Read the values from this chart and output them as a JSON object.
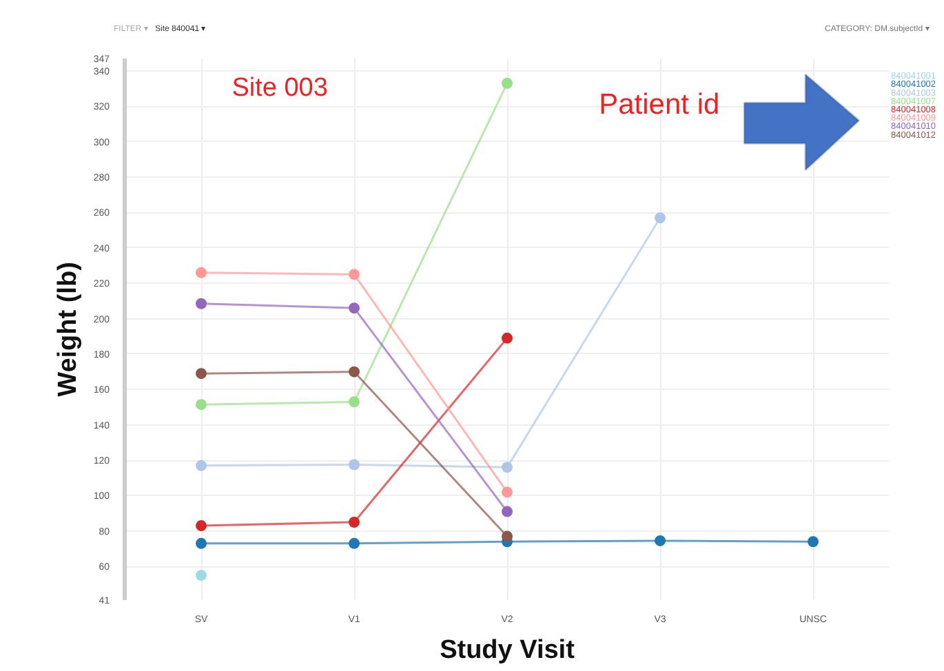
{
  "chart_data": {
    "type": "line",
    "xlabel": "Study Visit",
    "ylabel": "Weight (lb)",
    "annotations": [
      "FILTER ▾",
      "Site 840041 ▾",
      "CATEGORY: DM.subjectId ▾",
      "Site 003",
      "Patient id"
    ],
    "categories": [
      "SV",
      "V1",
      "V2",
      "V3",
      "UNSC"
    ],
    "ylim": [
      41,
      347
    ],
    "yticks": [
      41,
      60,
      80,
      100,
      120,
      140,
      160,
      180,
      200,
      220,
      240,
      260,
      280,
      300,
      320,
      340,
      347
    ],
    "grid": true,
    "legend": "top right",
    "marker": "circle",
    "line_style": "solid",
    "series": [
      {
        "name": "840041001",
        "color": "#9edae5",
        "values": [
          55,
          null,
          null,
          null,
          null
        ]
      },
      {
        "name": "840041002",
        "color": "#1f77b4",
        "values": [
          73,
          73,
          74,
          74.5,
          74
        ]
      },
      {
        "name": "840041003",
        "color": "#aec7e8",
        "values": [
          117,
          117.5,
          116,
          257,
          null
        ]
      },
      {
        "name": "840041007",
        "color": "#98df8a",
        "values": [
          151.5,
          153,
          333,
          null,
          null
        ]
      },
      {
        "name": "840041008",
        "color": "#d62728",
        "values": [
          83,
          85,
          189,
          null,
          null
        ]
      },
      {
        "name": "840041009",
        "color": "#ff9896",
        "values": [
          226,
          225,
          102,
          null,
          null
        ]
      },
      {
        "name": "840041010",
        "color": "#9467bd",
        "values": [
          208.5,
          206,
          91,
          null,
          null
        ]
      },
      {
        "name": "840041012",
        "color": "#8c564b",
        "values": [
          169,
          170,
          77,
          null,
          null
        ]
      }
    ]
  }
}
